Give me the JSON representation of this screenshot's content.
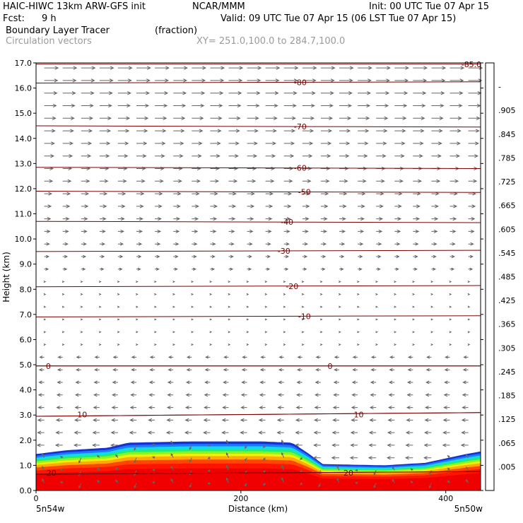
{
  "header": {
    "model": "HAIC-HIWC 13km ARW-GFS init",
    "org": "NCAR/MMM",
    "init": "Init: 00 UTC Tue 07 Apr 15",
    "fcst_label": "Fcst:",
    "fcst_value": "9 h",
    "valid": "Valid: 09 UTC Tue 07 Apr 15 (06 LST Tue 07 Apr 15)",
    "field": "Boundary Layer Tracer",
    "units": "(fraction)",
    "vectors": "Circulation vectors",
    "xsec": "XY= 251.0,100.0 to 284.7,100.0"
  },
  "chart_data": {
    "type": "heatmap",
    "xlabel": "Distance (km)",
    "ylabel": "Height (km)",
    "xlim": [
      0,
      434
    ],
    "ylim": [
      0,
      17
    ],
    "x_ticks": [
      0,
      200,
      400
    ],
    "y_ticks": [
      "0.0",
      "1.0",
      "2.0",
      "3.0",
      "4.0",
      "5.0",
      "6.0",
      "7.0",
      "8.0",
      "9.0",
      "10.0",
      "11.0",
      "12.0",
      "13.0",
      "14.0",
      "15.0",
      "16.0",
      "17.0"
    ],
    "x_end_labels": {
      "left": "5n54w",
      "right": "5n50w"
    },
    "colorbar": {
      "labels": [
        ".005",
        ".065",
        ".125",
        ".185",
        ".245",
        ".305",
        ".365",
        ".425",
        ".485",
        ".545",
        ".605",
        ".665",
        ".725",
        ".785",
        ".845",
        ".905",
        "-"
      ],
      "colors": [
        "#ffffff",
        "#1432d2",
        "#1e5af5",
        "#1e8cff",
        "#1eb4ff",
        "#14d7f0",
        "#14e6b4",
        "#1eeb78",
        "#50f032",
        "#8cf51e",
        "#c8fa14",
        "#f0f00a",
        "#ffd200",
        "#ffaa00",
        "#ff7800",
        "#ff4600",
        "#ff1400",
        "#f00000"
      ]
    },
    "tracer_top": {
      "x": [
        0,
        30,
        70,
        90,
        150,
        220,
        250,
        265,
        280,
        340,
        380,
        420,
        434
      ],
      "y": [
        1.45,
        1.6,
        1.7,
        1.9,
        1.95,
        1.95,
        1.9,
        1.5,
        1.05,
        1.0,
        1.1,
        1.45,
        1.55
      ]
    },
    "isotherms": [
      {
        "label": "-85.0",
        "y0": 16.95,
        "y1": 16.95,
        "lx": 425
      },
      {
        "label": "-80",
        "y0": 16.2,
        "y1": 16.25,
        "lx": 258
      },
      {
        "label": "-70",
        "y0": 14.5,
        "y1": 14.45,
        "lx": 258
      },
      {
        "label": "-60",
        "y0": 12.85,
        "y1": 12.8,
        "lx": 258
      },
      {
        "label": "-50",
        "y0": 11.9,
        "y1": 11.85,
        "lx": 262
      },
      {
        "label": "-40",
        "y0": 10.7,
        "y1": 10.65,
        "lx": 245
      },
      {
        "label": "-30",
        "y0": 9.5,
        "y1": 9.55,
        "lx": 242
      },
      {
        "label": "-20",
        "y0": 8.1,
        "y1": 8.15,
        "lx": 250
      },
      {
        "label": "-10",
        "y0": 6.9,
        "y1": 6.95,
        "lx": 262
      },
      {
        "label": "0",
        "y0": 4.95,
        "y1": 4.95,
        "lx": 12
      },
      {
        "label": "0",
        "y0": 4.95,
        "y1": 4.95,
        "lx": 287
      },
      {
        "label": "10",
        "y0": 2.95,
        "y1": 3.1,
        "lx": 45
      },
      {
        "label": "10",
        "y0": 2.95,
        "y1": 3.1,
        "lx": 315
      },
      {
        "label": "20",
        "y0": 0.65,
        "y1": 0.75,
        "lx": 15
      },
      {
        "label": "20",
        "y0": 0.65,
        "y1": 0.75,
        "lx": 305
      }
    ]
  }
}
